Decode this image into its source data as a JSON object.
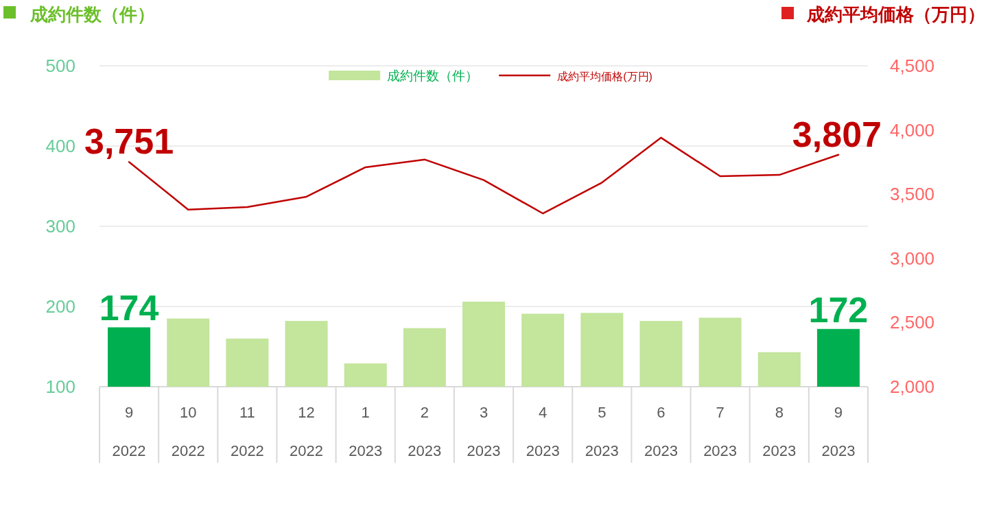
{
  "chart_data": {
    "type": "bar",
    "ylabel": "成約件数（件）",
    "y2label": "成約平均価格（万円）",
    "categories": [
      "9\n2022",
      "10\n2022",
      "11\n2022",
      "12\n2022",
      "1\n2023",
      "2\n2023",
      "3\n2023",
      "4\n2023",
      "5\n2023",
      "6\n2023",
      "7\n2023",
      "8\n2023",
      "9\n2023"
    ],
    "series": [
      {
        "name": "成約件数（件）",
        "color": "#c3e59c",
        "colors": [
          "#00b050",
          "#c3e59c",
          "#c3e59c",
          "#c3e59c",
          "#c3e59c",
          "#c3e59c",
          "#c3e59c",
          "#c3e59c",
          "#c3e59c",
          "#c3e59c",
          "#c3e59c",
          "#c3e59c",
          "#00b050"
        ],
        "values": [
          174,
          185,
          160,
          182,
          129,
          173,
          206,
          191,
          192,
          182,
          186,
          143,
          172
        ],
        "value_labels": [
          "174",
          null,
          null,
          null,
          null,
          null,
          null,
          null,
          null,
          null,
          null,
          null,
          "172"
        ]
      },
      {
        "name": "成約平均価格(万円)",
        "type": "line",
        "axis": "y2",
        "color": "#c00000",
        "values": [
          3751,
          3380,
          3400,
          3480,
          3710,
          3770,
          3610,
          3350,
          3590,
          3940,
          3640,
          3650,
          3807
        ],
        "value_labels": [
          "3,751",
          null,
          null,
          null,
          null,
          null,
          null,
          null,
          null,
          null,
          null,
          null,
          "3,807"
        ]
      }
    ],
    "ylim": [
      100,
      500
    ],
    "yticks": [
      100,
      200,
      300,
      400,
      500
    ],
    "y2lim": [
      2000,
      4500
    ],
    "y2ticks": [
      {
        "value": 2000,
        "label": "2,000"
      },
      {
        "value": 2500,
        "label": "2,500"
      },
      {
        "value": 3000,
        "label": "3,000"
      },
      {
        "value": 3500,
        "label": "3,500"
      },
      {
        "value": 4000,
        "label": "4,000"
      },
      {
        "value": 4500,
        "label": "4,500"
      }
    ],
    "grid": "y",
    "legend": "top"
  }
}
